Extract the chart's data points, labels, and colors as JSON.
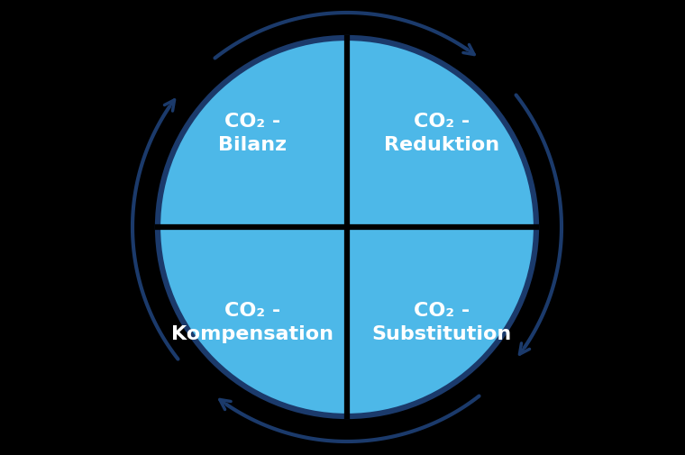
{
  "background_color": "#000000",
  "circle_fill_color": "#4DB8E8",
  "circle_edge_color": "#1B3A6B",
  "circle_linewidth": 4.5,
  "divider_color": "#000000",
  "divider_linewidth": 4.5,
  "text_color": "#FFFFFF",
  "arrow_color": "#1B3A6B",
  "quadrants": [
    {
      "label": "CO₂ -\nBilanz",
      "qx": -1,
      "qy": 1
    },
    {
      "label": "CO₂ -\nReduktion",
      "qx": 1,
      "qy": 1
    },
    {
      "label": "CO₂ -\nKompensation",
      "qx": -1,
      "qy": -1
    },
    {
      "label": "CO₂ -\nSubstitution",
      "qx": 1,
      "qy": -1
    }
  ],
  "font_size": 16,
  "font_weight": "bold",
  "arcs": [
    {
      "t1": 128,
      "t2": 52
    },
    {
      "t1": 38,
      "t2": -38
    },
    {
      "t1": 308,
      "t2": 232
    },
    {
      "t1": 218,
      "t2": 142
    }
  ]
}
